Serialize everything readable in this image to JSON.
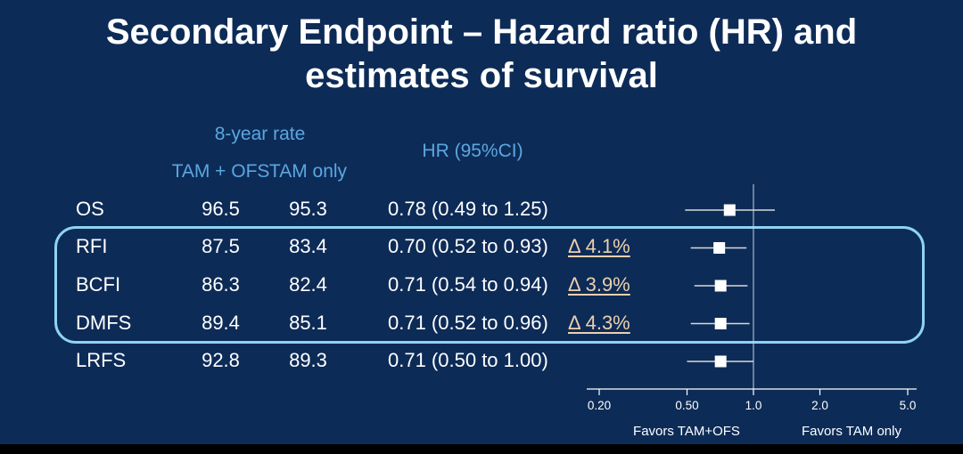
{
  "slide": {
    "title_line1": "Secondary Endpoint – Hazard ratio (HR) and",
    "title_line2": "estimates of survival"
  },
  "table": {
    "header": {
      "rate_group": "8-year rate",
      "tam_ofs": "TAM + OFS",
      "tam_only": "TAM only",
      "hr": "HR (95%CI)"
    },
    "rows": [
      {
        "endpoint": "OS",
        "tam_ofs": "96.5",
        "tam_only": "95.3",
        "hr_ci": "0.78 (0.49 to 1.25)",
        "delta": ""
      },
      {
        "endpoint": "RFI",
        "tam_ofs": "87.5",
        "tam_only": "83.4",
        "hr_ci": "0.70 (0.52 to 0.93)",
        "delta": "Δ 4.1%"
      },
      {
        "endpoint": "BCFI",
        "tam_ofs": "86.3",
        "tam_only": "82.4",
        "hr_ci": "0.71 (0.54 to 0.94)",
        "delta": "Δ 3.9%"
      },
      {
        "endpoint": "DMFS",
        "tam_ofs": "89.4",
        "tam_only": "85.1",
        "hr_ci": "0.71 (0.52 to 0.96)",
        "delta": "Δ 4.3%"
      },
      {
        "endpoint": "LRFS",
        "tam_ofs": "92.8",
        "tam_only": "89.3",
        "hr_ci": "0.71 (0.50 to 1.00)",
        "delta": ""
      }
    ],
    "highlighted_rows": [
      "RFI",
      "BCFI",
      "DMFS"
    ]
  },
  "chart_data": {
    "type": "scatter",
    "subtype": "forest-plot",
    "x_scale": "log",
    "x_range": [
      0.2,
      5.0
    ],
    "x_ticks": [
      0.2,
      0.5,
      1.0,
      2.0,
      5.0
    ],
    "x_tick_labels": [
      "0.20",
      "0.50",
      "1.0",
      "2.0",
      "5.0"
    ],
    "reference_line": 1.0,
    "series": [
      {
        "name": "OS",
        "hr": 0.78,
        "ci_low": 0.49,
        "ci_high": 1.25
      },
      {
        "name": "RFI",
        "hr": 0.7,
        "ci_low": 0.52,
        "ci_high": 0.93
      },
      {
        "name": "BCFI",
        "hr": 0.71,
        "ci_low": 0.54,
        "ci_high": 0.94
      },
      {
        "name": "DMFS",
        "hr": 0.71,
        "ci_low": 0.52,
        "ci_high": 0.96
      },
      {
        "name": "LRFS",
        "hr": 0.71,
        "ci_low": 0.5,
        "ci_high": 1.0
      }
    ],
    "annotations": [
      "Favors TAM+OFS",
      "Favors TAM only"
    ],
    "legend_position": "none",
    "grid": false
  },
  "colors": {
    "background": "#0d2b57",
    "title_text": "#ffffff",
    "header_text": "#5aa7e0",
    "body_text": "#ffffff",
    "delta_text": "#ecd0ac",
    "highlight_border": "#8fd3f2",
    "marker": "#ffffff"
  }
}
